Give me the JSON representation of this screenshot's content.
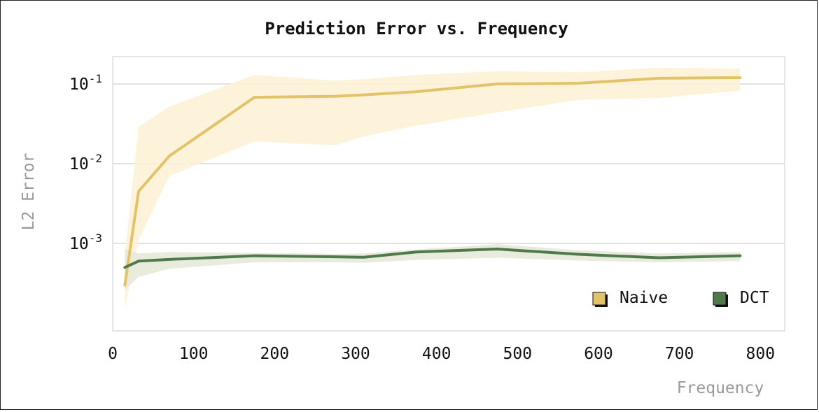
{
  "chart_data": {
    "type": "line",
    "title": "Prediction Error vs. Frequency",
    "xlabel": "Frequency",
    "ylabel": "L2 Error",
    "xlim": [
      0,
      830
    ],
    "ylim": [
      8e-05,
      0.22
    ],
    "yscale": "log",
    "x_ticks": [
      0,
      100,
      200,
      300,
      400,
      500,
      600,
      700,
      800
    ],
    "y_ticks": [
      {
        "value": 0.1,
        "base": "10",
        "exp": "-1"
      },
      {
        "value": 0.01,
        "base": "10",
        "exp": "-2"
      },
      {
        "value": 0.001,
        "base": "10",
        "exp": "-3"
      }
    ],
    "grid": "horizontal",
    "legend_position": "bottom-right",
    "series": [
      {
        "name": "Naive",
        "color": "#e3c36a",
        "band_color": "#fbf1d4",
        "x": [
          15,
          32,
          70,
          175,
          275,
          310,
          375,
          475,
          575,
          675,
          775
        ],
        "y": [
          0.0003,
          0.0045,
          0.0125,
          0.068,
          0.07,
          0.073,
          0.08,
          0.1,
          0.102,
          0.118,
          0.12
        ],
        "lower": [
          0.00015,
          0.0011,
          0.007,
          0.019,
          0.017,
          0.022,
          0.03,
          0.044,
          0.063,
          0.067,
          0.082
        ],
        "upper": [
          0.00075,
          0.029,
          0.052,
          0.13,
          0.11,
          0.115,
          0.13,
          0.145,
          0.14,
          0.16,
          0.155
        ]
      },
      {
        "name": "DCT",
        "color": "#4f7a4c",
        "band_color": "#e5e8d6",
        "x": [
          15,
          32,
          70,
          175,
          275,
          310,
          375,
          475,
          575,
          675,
          775
        ],
        "y": [
          0.0005,
          0.0006,
          0.00063,
          0.0007,
          0.00068,
          0.00067,
          0.00078,
          0.00085,
          0.00073,
          0.00066,
          0.0007
        ],
        "lower": [
          0.00026,
          0.00038,
          0.00048,
          0.00058,
          0.00058,
          0.00057,
          0.00062,
          0.00066,
          0.00061,
          0.00058,
          0.0006
        ],
        "upper": [
          0.00085,
          0.00075,
          0.00078,
          0.00076,
          0.00074,
          0.00075,
          0.00084,
          0.00098,
          0.00082,
          0.00075,
          0.00078
        ]
      }
    ]
  }
}
